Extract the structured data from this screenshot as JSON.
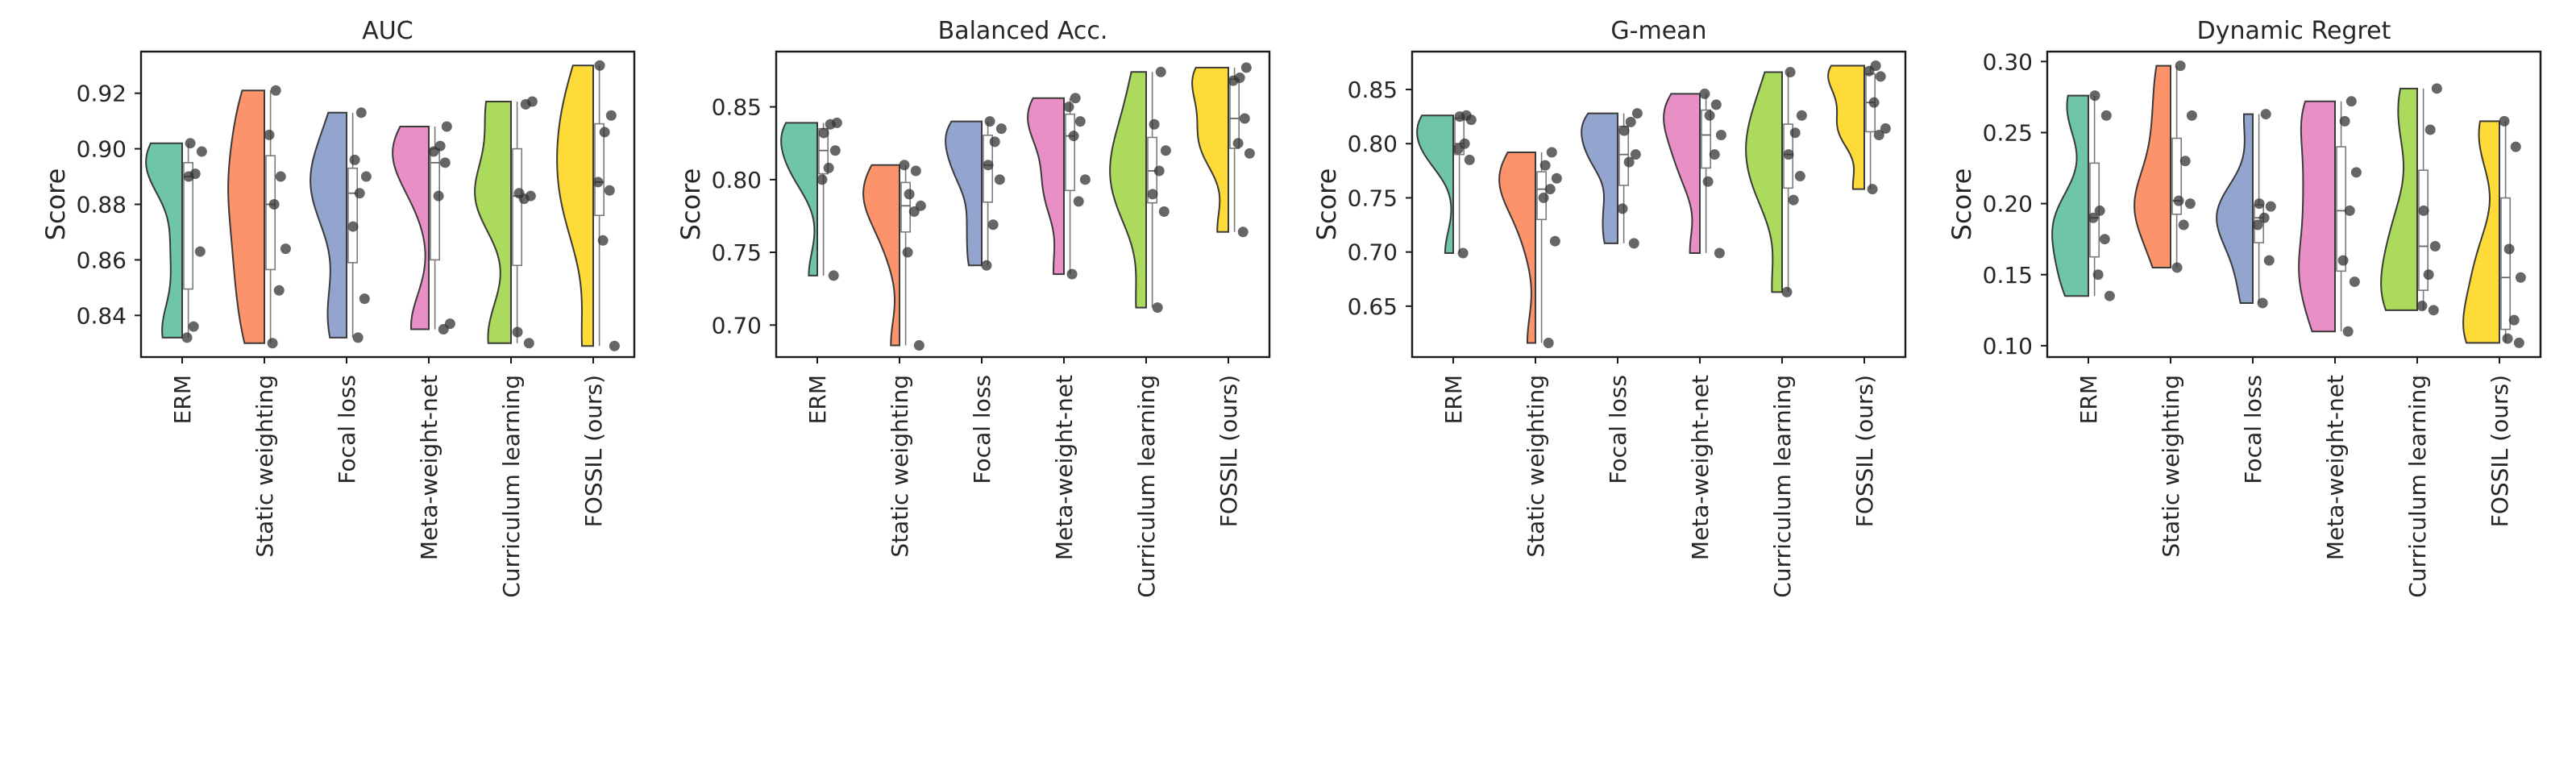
{
  "chart_data": [
    {
      "type": "violin",
      "title": "AUC",
      "ylabel": "Score",
      "ylim": [
        0.825,
        0.935
      ],
      "yticks": [
        0.84,
        0.86,
        0.88,
        0.9,
        0.92
      ],
      "ytick_labels": [
        "0.84",
        "0.86",
        "0.88",
        "0.90",
        "0.92"
      ],
      "categories": [
        "ERM",
        "Static weighting",
        "Focal loss",
        "Meta-weight-net",
        "Curriculum learning",
        "FOSSIL (ours)"
      ],
      "series": [
        {
          "name": "ERM",
          "points": [
            0.832,
            0.836,
            0.863,
            0.89,
            0.891,
            0.899,
            0.902
          ]
        },
        {
          "name": "Static weighting",
          "points": [
            0.83,
            0.849,
            0.864,
            0.88,
            0.89,
            0.905,
            0.921
          ]
        },
        {
          "name": "Focal loss",
          "points": [
            0.832,
            0.846,
            0.872,
            0.884,
            0.89,
            0.896,
            0.913
          ]
        },
        {
          "name": "Meta-weight-net",
          "points": [
            0.835,
            0.837,
            0.883,
            0.895,
            0.899,
            0.901,
            0.908
          ]
        },
        {
          "name": "Curriculum learning",
          "points": [
            0.83,
            0.834,
            0.882,
            0.883,
            0.884,
            0.916,
            0.917
          ]
        },
        {
          "name": "FOSSIL (ours)",
          "points": [
            0.829,
            0.867,
            0.885,
            0.888,
            0.906,
            0.912,
            0.93
          ]
        }
      ]
    },
    {
      "type": "violin",
      "title": "Balanced Acc.",
      "ylabel": "Score",
      "ylim": [
        0.678,
        0.888
      ],
      "yticks": [
        0.7,
        0.75,
        0.8,
        0.85
      ],
      "ytick_labels": [
        "0.70",
        "0.75",
        "0.80",
        "0.85"
      ],
      "categories": [
        "ERM",
        "Static weighting",
        "Focal loss",
        "Meta-weight-net",
        "Curriculum learning",
        "FOSSIL (ours)"
      ],
      "series": [
        {
          "name": "ERM",
          "points": [
            0.734,
            0.8,
            0.808,
            0.82,
            0.832,
            0.838,
            0.839
          ]
        },
        {
          "name": "Static weighting",
          "points": [
            0.686,
            0.75,
            0.778,
            0.782,
            0.79,
            0.806,
            0.81
          ]
        },
        {
          "name": "Focal loss",
          "points": [
            0.741,
            0.769,
            0.8,
            0.81,
            0.826,
            0.835,
            0.84
          ]
        },
        {
          "name": "Meta-weight-net",
          "points": [
            0.735,
            0.785,
            0.8,
            0.83,
            0.84,
            0.85,
            0.856
          ]
        },
        {
          "name": "Curriculum learning",
          "points": [
            0.712,
            0.778,
            0.79,
            0.806,
            0.82,
            0.838,
            0.874
          ]
        },
        {
          "name": "FOSSIL (ours)",
          "points": [
            0.764,
            0.818,
            0.825,
            0.842,
            0.868,
            0.87,
            0.877
          ]
        }
      ]
    },
    {
      "type": "violin",
      "title": "G-mean",
      "ylabel": "Score",
      "ylim": [
        0.603,
        0.885
      ],
      "yticks": [
        0.65,
        0.7,
        0.75,
        0.8,
        0.85
      ],
      "ytick_labels": [
        "0.65",
        "0.70",
        "0.75",
        "0.80",
        "0.85"
      ],
      "categories": [
        "ERM",
        "Static weighting",
        "Focal loss",
        "Meta-weight-net",
        "Curriculum learning",
        "FOSSIL (ours)"
      ],
      "series": [
        {
          "name": "ERM",
          "points": [
            0.699,
            0.785,
            0.795,
            0.8,
            0.822,
            0.825,
            0.826
          ]
        },
        {
          "name": "Static weighting",
          "points": [
            0.616,
            0.71,
            0.75,
            0.758,
            0.768,
            0.78,
            0.792
          ]
        },
        {
          "name": "Focal loss",
          "points": [
            0.708,
            0.74,
            0.783,
            0.79,
            0.812,
            0.82,
            0.828
          ]
        },
        {
          "name": "Meta-weight-net",
          "points": [
            0.699,
            0.765,
            0.79,
            0.808,
            0.826,
            0.836,
            0.846
          ]
        },
        {
          "name": "Curriculum learning",
          "points": [
            0.663,
            0.748,
            0.77,
            0.79,
            0.81,
            0.826,
            0.866
          ]
        },
        {
          "name": "FOSSIL (ours)",
          "points": [
            0.758,
            0.808,
            0.814,
            0.838,
            0.862,
            0.867,
            0.872
          ]
        }
      ]
    },
    {
      "type": "violin",
      "title": "Dynamic Regret",
      "ylabel": "Score",
      "ylim": [
        0.092,
        0.307
      ],
      "yticks": [
        0.1,
        0.15,
        0.2,
        0.25,
        0.3
      ],
      "ytick_labels": [
        "0.10",
        "0.15",
        "0.20",
        "0.25",
        "0.30"
      ],
      "categories": [
        "ERM",
        "Static weighting",
        "Focal loss",
        "Meta-weight-net",
        "Curriculum learning",
        "FOSSIL (ours)"
      ],
      "series": [
        {
          "name": "ERM",
          "points": [
            0.135,
            0.15,
            0.175,
            0.19,
            0.195,
            0.262,
            0.276
          ]
        },
        {
          "name": "Static weighting",
          "points": [
            0.155,
            0.185,
            0.2,
            0.202,
            0.23,
            0.262,
            0.297
          ]
        },
        {
          "name": "Focal loss",
          "points": [
            0.13,
            0.16,
            0.185,
            0.19,
            0.198,
            0.2,
            0.263
          ]
        },
        {
          "name": "Meta-weight-net",
          "points": [
            0.11,
            0.145,
            0.16,
            0.195,
            0.222,
            0.258,
            0.272
          ]
        },
        {
          "name": "Curriculum learning",
          "points": [
            0.125,
            0.128,
            0.15,
            0.17,
            0.195,
            0.252,
            0.281
          ]
        },
        {
          "name": "FOSSIL (ours)",
          "points": [
            0.102,
            0.105,
            0.118,
            0.148,
            0.168,
            0.24,
            0.258
          ]
        }
      ]
    }
  ],
  "colors": [
    "#66c2a5",
    "#fc8d62",
    "#8da0cb",
    "#e78ac3",
    "#a6d854",
    "#ffd92f"
  ]
}
